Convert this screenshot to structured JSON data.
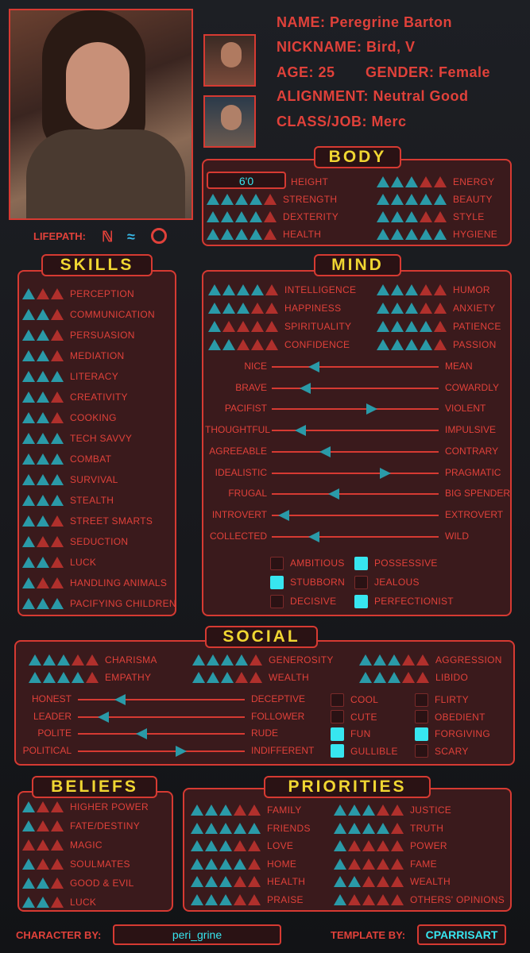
{
  "info": {
    "name": "NAME: Peregrine Barton",
    "nickname": "NICKNAME: Bird, V",
    "age": "AGE: 25",
    "gender": "GENDER: Female",
    "alignment": "ALIGNMENT: Neutral Good",
    "class": "CLASS/JOB: Merc"
  },
  "lifepath_label": "LIFEPATH:",
  "sections": {
    "body": "BODY",
    "skills": "SKILLS",
    "mind": "MIND",
    "social": "SOCIAL",
    "beliefs": "BELIEFS",
    "priorities": "PRIORITIES"
  },
  "body": {
    "height_value": "6'0",
    "height_label": "HEIGHT",
    "left": [
      {
        "label": "STRENGTH",
        "value": 4
      },
      {
        "label": "DEXTERITY",
        "value": 4
      },
      {
        "label": "HEALTH",
        "value": 4
      }
    ],
    "right": [
      {
        "label": "ENERGY",
        "value": 3
      },
      {
        "label": "BEAUTY",
        "value": 5
      },
      {
        "label": "STYLE",
        "value": 3
      },
      {
        "label": "HYGIENE",
        "value": 5
      }
    ]
  },
  "skills": [
    {
      "label": "PERCEPTION",
      "value": 1
    },
    {
      "label": "COMMUNICATION",
      "value": 2
    },
    {
      "label": "PERSUASION",
      "value": 2
    },
    {
      "label": "MEDIATION",
      "value": 2
    },
    {
      "label": "LITERACY",
      "value": 3
    },
    {
      "label": "CREATIVITY",
      "value": 2
    },
    {
      "label": "COOKING",
      "value": 2
    },
    {
      "label": "TECH SAVVY",
      "value": 3
    },
    {
      "label": "COMBAT",
      "value": 3
    },
    {
      "label": "SURVIVAL",
      "value": 3
    },
    {
      "label": "STEALTH",
      "value": 3
    },
    {
      "label": "STREET SMARTS",
      "value": 2
    },
    {
      "label": "SEDUCTION",
      "value": 1
    },
    {
      "label": "LUCK",
      "value": 2
    },
    {
      "label": "HANDLING ANIMALS",
      "value": 1
    },
    {
      "label": "PACIFYING CHILDREN",
      "value": 3
    }
  ],
  "mind": {
    "left": [
      {
        "label": "INTELLIGENCE",
        "value": 4
      },
      {
        "label": "HAPPINESS",
        "value": 3
      },
      {
        "label": "SPIRITUALITY",
        "value": 1
      },
      {
        "label": "CONFIDENCE",
        "value": 2
      }
    ],
    "right": [
      {
        "label": "HUMOR",
        "value": 3
      },
      {
        "label": "ANXIETY",
        "value": 3
      },
      {
        "label": "PATIENCE",
        "value": 4
      },
      {
        "label": "PASSION",
        "value": 4
      }
    ],
    "sliders": [
      {
        "left": "NICE",
        "right": "MEAN",
        "value": 0.25,
        "dir": "l"
      },
      {
        "left": "BRAVE",
        "right": "COWARDLY",
        "value": 0.2,
        "dir": "l"
      },
      {
        "left": "PACIFIST",
        "right": "VIOLENT",
        "value": 0.6,
        "dir": "r"
      },
      {
        "left": "THOUGHTFUL",
        "right": "IMPULSIVE",
        "value": 0.17,
        "dir": "l"
      },
      {
        "left": "AGREEABLE",
        "right": "CONTRARY",
        "value": 0.32,
        "dir": "l"
      },
      {
        "left": "IDEALISTIC",
        "right": "PRAGMATIC",
        "value": 0.68,
        "dir": "r"
      },
      {
        "left": "FRUGAL",
        "right": "BIG SPENDER",
        "value": 0.37,
        "dir": "l"
      },
      {
        "left": "INTROVERT",
        "right": "EXTROVERT",
        "value": 0.07,
        "dir": "l"
      },
      {
        "left": "COLLECTED",
        "right": "WILD",
        "value": 0.25,
        "dir": "l"
      }
    ],
    "checks": [
      {
        "label": "AMBITIOUS",
        "on": false
      },
      {
        "label": "POSSESSIVE",
        "on": true
      },
      {
        "label": "STUBBORN",
        "on": true
      },
      {
        "label": "JEALOUS",
        "on": false
      },
      {
        "label": "DECISIVE",
        "on": false
      },
      {
        "label": "PERFECTIONIST",
        "on": true
      }
    ]
  },
  "social": {
    "ratings": [
      {
        "label": "CHARISMA",
        "value": 3
      },
      {
        "label": "GENEROSITY",
        "value": 4
      },
      {
        "label": "AGGRESSION",
        "value": 3
      },
      {
        "label": "EMPATHY",
        "value": 4
      },
      {
        "label": "WEALTH",
        "value": 3
      },
      {
        "label": "LIBIDO",
        "value": 3
      }
    ],
    "sliders": [
      {
        "left": "HONEST",
        "right": "DECEPTIVE",
        "value": 0.25,
        "dir": "l"
      },
      {
        "left": "LEADER",
        "right": "FOLLOWER",
        "value": 0.15,
        "dir": "l"
      },
      {
        "left": "POLITE",
        "right": "RUDE",
        "value": 0.38,
        "dir": "l"
      },
      {
        "left": "POLITICAL",
        "right": "INDIFFERENT",
        "value": 0.62,
        "dir": "r"
      }
    ],
    "checks": [
      {
        "label": "COOL",
        "on": false
      },
      {
        "label": "FLIRTY",
        "on": false
      },
      {
        "label": "CUTE",
        "on": false
      },
      {
        "label": "OBEDIENT",
        "on": false
      },
      {
        "label": "FUN",
        "on": true
      },
      {
        "label": "FORGIVING",
        "on": true
      },
      {
        "label": "GULLIBLE",
        "on": true
      },
      {
        "label": "SCARY",
        "on": false
      }
    ]
  },
  "beliefs": [
    {
      "label": "HIGHER POWER",
      "value": 1
    },
    {
      "label": "FATE/DESTINY",
      "value": 1
    },
    {
      "label": "MAGIC",
      "value": 0
    },
    {
      "label": "SOULMATES",
      "value": 1
    },
    {
      "label": "GOOD & EVIL",
      "value": 2
    },
    {
      "label": "LUCK",
      "value": 2
    }
  ],
  "priorities": {
    "left": [
      {
        "label": "FAMILY",
        "value": 3
      },
      {
        "label": "FRIENDS",
        "value": 5
      },
      {
        "label": "LOVE",
        "value": 3
      },
      {
        "label": "HOME",
        "value": 4
      },
      {
        "label": "HEALTH",
        "value": 3
      },
      {
        "label": "PRAISE",
        "value": 3
      }
    ],
    "right": [
      {
        "label": "JUSTICE",
        "value": 3
      },
      {
        "label": "TRUTH",
        "value": 4
      },
      {
        "label": "POWER",
        "value": 1
      },
      {
        "label": "FAME",
        "value": 1
      },
      {
        "label": "WEALTH",
        "value": 2
      },
      {
        "label": "OTHERS' OPINIONS",
        "value": 1
      }
    ]
  },
  "footer": {
    "character_by_label": "CHARACTER BY:",
    "character_by": "peri_grine",
    "template_by_label": "TEMPLATE BY:",
    "template_by": "CPARRISART"
  },
  "colors": {
    "accent": "#d63a32",
    "on": "#2a9aa8",
    "check": "#37e6f0",
    "title": "#f0d632"
  }
}
